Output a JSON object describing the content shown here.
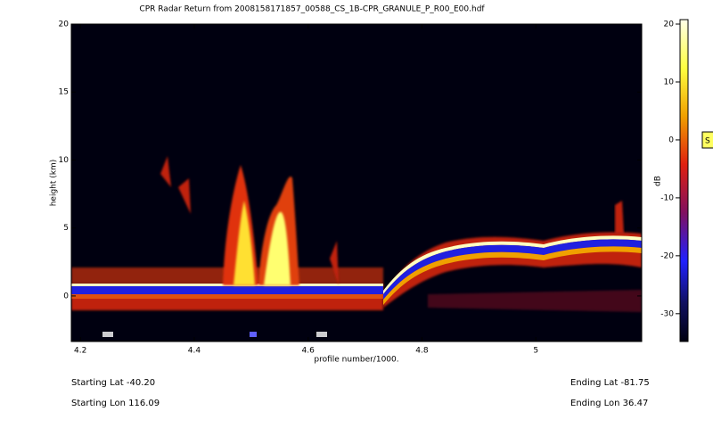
{
  "chart_data": {
    "type": "heatmap",
    "title": "CPR Radar Return from 2008158171857_00588_CS_1B-CPR_GRANULE_P_R00_E00.hdf",
    "xlabel": "profile number/1000.",
    "ylabel": "height (km)",
    "xlim": [
      4.184,
      5.186
    ],
    "ylim": [
      -3.35,
      20
    ],
    "xticks": [
      4.2,
      4.4,
      4.6,
      4.8,
      5.0
    ],
    "yticks": [
      20,
      15,
      10,
      5,
      0
    ],
    "colorbar": {
      "label": "dB",
      "lim": [
        -34.8,
        20.77
      ],
      "ticks": [
        20,
        10,
        0,
        -10,
        -20,
        -30
      ]
    },
    "annotations": [
      "Starting Lat -40.20",
      "Starting Lon 116.09",
      "Ending Lat -81.75",
      "Ending Lon 36.47"
    ],
    "button": "S"
  }
}
